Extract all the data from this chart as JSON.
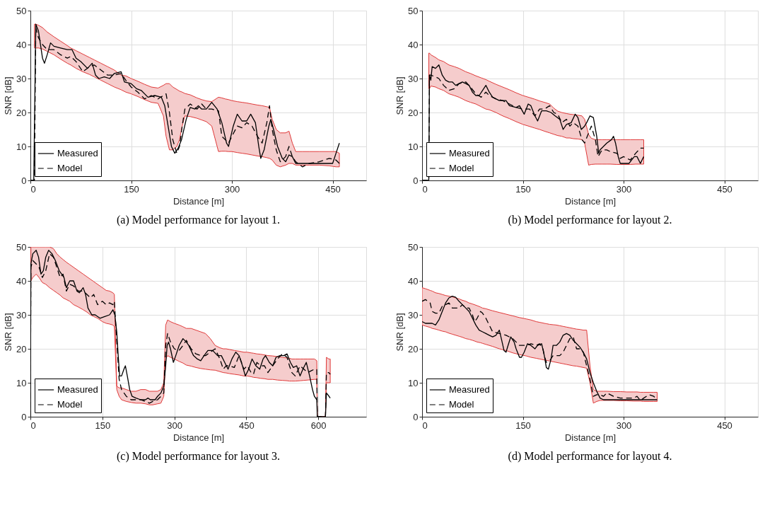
{
  "chart_data": [
    {
      "type": "line",
      "title": "(a) Model performance for layout 1.",
      "xlabel": "Distance [m]",
      "ylabel": "SNR [dB]",
      "xlim": [
        0,
        500
      ],
      "ylim": [
        0,
        50
      ],
      "xticks": [
        0,
        150,
        300,
        450
      ],
      "yticks": [
        0,
        10,
        20,
        30,
        40,
        50
      ],
      "grid": true,
      "legend": "bottom left",
      "series": [
        {
          "name": "Measured",
          "color": "#000000",
          "line_style": "solid",
          "x": [
            0,
            5,
            8,
            12,
            18,
            21,
            25,
            30,
            35,
            45,
            55,
            62,
            68,
            75,
            85,
            92,
            97,
            102,
            110,
            118,
            125,
            135,
            140,
            150,
            158,
            165,
            175,
            185,
            195,
            200,
            205,
            210,
            215,
            220,
            225,
            232,
            238,
            245,
            250,
            255,
            262,
            270,
            278,
            285,
            292,
            295,
            302,
            308,
            315,
            322,
            328,
            335,
            340,
            343,
            348,
            355,
            358,
            362,
            368,
            375,
            380,
            385,
            390,
            395,
            400,
            410,
            420,
            430,
            450,
            455,
            460
          ],
          "values": [
            0,
            0,
            46,
            44,
            36,
            34.5,
            37,
            40.5,
            39.5,
            39,
            38.5,
            38.5,
            36,
            35,
            33,
            34.5,
            31,
            30,
            30.5,
            30,
            31.5,
            32,
            29,
            28.5,
            27,
            26.5,
            24.5,
            25,
            24.5,
            22,
            16,
            10,
            8,
            9.5,
            12,
            18,
            21.5,
            21,
            22,
            21,
            21,
            23,
            21,
            17,
            11,
            10,
            16,
            19.5,
            17.5,
            17.5,
            19.5,
            17,
            10,
            6.5,
            9,
            16,
            18,
            15,
            10,
            6.5,
            5.5,
            7.5,
            7,
            5,
            5,
            5,
            5,
            5,
            5,
            8,
            11
          ]
        },
        {
          "name": "Model",
          "color": "#000000",
          "line_style": "dashed",
          "x": [
            0,
            6,
            8,
            12,
            18,
            25,
            35,
            45,
            55,
            60,
            68,
            78,
            88,
            95,
            105,
            115,
            125,
            135,
            142,
            150,
            160,
            170,
            180,
            190,
            198,
            202,
            207,
            212,
            218,
            222,
            226,
            230,
            238,
            248,
            255,
            262,
            270,
            280,
            285,
            290,
            295,
            300,
            308,
            315,
            322,
            330,
            338,
            345,
            352,
            356,
            360,
            366,
            372,
            380,
            385,
            390,
            395,
            405,
            415,
            430,
            445,
            455,
            460
          ],
          "values": [
            0,
            0,
            45,
            42,
            40,
            38.5,
            38.5,
            37,
            36,
            36.5,
            35,
            32,
            33.5,
            34,
            32.5,
            31,
            31,
            31.5,
            29.5,
            27.5,
            26,
            24,
            25,
            24,
            25,
            25.5,
            20,
            12,
            8,
            10,
            16,
            21,
            22.5,
            21,
            22.5,
            21,
            21,
            20.5,
            13,
            12,
            11,
            13,
            16,
            15.5,
            17,
            16,
            13,
            11,
            17,
            22,
            15,
            9,
            5.5,
            7,
            10,
            7,
            5.5,
            4,
            5,
            5.5,
            6.5,
            6,
            5
          ],
          "upper": [
            null,
            46,
            46,
            45.7,
            45,
            43.7,
            42.3,
            41,
            39.7,
            39,
            38.2,
            37.2,
            36.2,
            35.5,
            34.5,
            33.5,
            32.5,
            31,
            30.8,
            30,
            29.2,
            28.3,
            27.5,
            27.2,
            28,
            28.5,
            28.5,
            27.5,
            26.8,
            26.3,
            26,
            25.6,
            25.2,
            24.3,
            23.8,
            23.4,
            23.2,
            24.5,
            24.3,
            24,
            23.8,
            23.5,
            23.2,
            23,
            22.8,
            22.5,
            22.2,
            22,
            21.7,
            21.5,
            18,
            15,
            14,
            14,
            14.5,
            11,
            8.5,
            8.5,
            8.5,
            8.5,
            8.5,
            8.5,
            8
          ],
          "lower": [
            null,
            39,
            39,
            39,
            38.7,
            38,
            37,
            35.7,
            34.5,
            34,
            33,
            32,
            31.2,
            30.5,
            29.5,
            28.5,
            27.5,
            26.7,
            26,
            25.5,
            24.7,
            23.8,
            23,
            22.7,
            19,
            13,
            9,
            9,
            10,
            12,
            16,
            19,
            18.8,
            18.3,
            17.8,
            17.3,
            16,
            8.5,
            8.6,
            8.6,
            8.5,
            8.5,
            8.2,
            8,
            7.8,
            7.5,
            7.2,
            7,
            6.7,
            6.5,
            6,
            4.5,
            4,
            4.5,
            5,
            5,
            4.5,
            4.5,
            4.5,
            4.5,
            4.3,
            4,
            4
          ]
        }
      ]
    },
    {
      "type": "line",
      "title": "(b) Model performance for layout 2.",
      "xlabel": "Distance [m]",
      "ylabel": "SNR [dB]",
      "xlim": [
        0,
        500
      ],
      "ylim": [
        0,
        50
      ],
      "xticks": [
        0,
        150,
        300,
        450
      ],
      "yticks": [
        0,
        10,
        20,
        30,
        40,
        50
      ],
      "grid": true,
      "legend": "bottom left",
      "series": [
        {
          "name": "Measured",
          "color": "#000000",
          "line_style": "solid",
          "x": [
            0,
            10,
            11,
            13,
            15,
            20,
            25,
            30,
            35,
            40,
            45,
            50,
            55,
            60,
            65,
            70,
            75,
            80,
            85,
            90,
            95,
            100,
            105,
            115,
            125,
            130,
            140,
            145,
            152,
            158,
            162,
            168,
            172,
            178,
            185,
            192,
            198,
            205,
            210,
            215,
            222,
            228,
            232,
            237,
            242,
            245,
            250,
            255,
            260,
            263,
            265,
            270,
            275,
            282,
            285,
            288,
            292,
            295,
            300,
            308,
            312,
            316,
            320,
            325,
            330
          ],
          "values": [
            0,
            0,
            31,
            29.5,
            33.5,
            33,
            34,
            31,
            29.5,
            29,
            29,
            28,
            28.5,
            29,
            28.5,
            28,
            26,
            25,
            25,
            26.5,
            28,
            26,
            24.5,
            23.5,
            23.5,
            22,
            21.5,
            22,
            19.5,
            22.5,
            22,
            19,
            17.5,
            20.5,
            20.5,
            20,
            19,
            18,
            15,
            16.5,
            17,
            19.5,
            18.5,
            15,
            16,
            17,
            19,
            18.5,
            13,
            8,
            9,
            10,
            11,
            12,
            13,
            11,
            7,
            5,
            5,
            5,
            6,
            7,
            7,
            5,
            7
          ]
        },
        {
          "name": "Model",
          "color": "#000000",
          "line_style": "dashed",
          "x": [
            0,
            10,
            11,
            13,
            20,
            25,
            32,
            40,
            48,
            55,
            65,
            72,
            80,
            88,
            95,
            100,
            110,
            120,
            130,
            140,
            150,
            160,
            168,
            175,
            182,
            190,
            196,
            202,
            208,
            215,
            220,
            225,
            232,
            238,
            242,
            248,
            252,
            258,
            262,
            268,
            275,
            280,
            290,
            295,
            300,
            310,
            318,
            325,
            330
          ],
          "values": [
            0,
            0,
            31,
            31,
            30.5,
            30,
            28,
            26.5,
            27,
            28.5,
            29,
            27.5,
            25.5,
            24.5,
            26,
            25,
            24,
            23.5,
            22.5,
            21.5,
            21,
            21,
            19,
            21,
            21,
            22,
            20,
            19.5,
            17,
            18,
            16,
            17,
            16,
            12,
            11,
            14,
            16,
            12,
            7,
            9,
            9,
            8.5,
            8,
            6.5,
            7,
            6,
            8,
            9.5,
            9.5
          ],
          "upper": [
            null,
            37.5,
            37.5,
            37,
            36.2,
            35.5,
            35,
            34,
            33.5,
            33,
            32,
            31.5,
            30.8,
            30.2,
            29.7,
            29.2,
            28.3,
            27.5,
            26.7,
            25.8,
            25,
            24.4,
            23.9,
            23.4,
            23,
            22.5,
            21.3,
            20.4,
            20,
            19.7,
            19.5,
            19.4,
            19.2,
            19,
            18,
            13.5,
            12.4,
            12,
            12,
            12,
            12,
            12,
            12,
            12,
            12,
            12,
            12,
            12,
            12
          ],
          "lower": [
            null,
            27,
            27,
            27.8,
            27.5,
            27,
            26.5,
            25.5,
            25,
            24.5,
            23.5,
            23,
            22.5,
            21.7,
            21,
            20.8,
            20,
            19,
            18.2,
            17.3,
            16.5,
            15.9,
            15.4,
            15,
            14.5,
            14,
            13.6,
            13.2,
            13,
            12.5,
            12.5,
            12.3,
            12.2,
            12,
            11,
            4.5,
            4.7,
            4.8,
            4.8,
            4.8,
            4.8,
            4.8,
            4.7,
            4.7,
            4.7,
            4.7,
            4.8,
            4.8,
            4.8
          ]
        }
      ]
    },
    {
      "type": "line",
      "title": "(c) Model performance for layout 3.",
      "xlabel": "Distance [m]",
      "ylabel": "SNR [dB]",
      "xlim": [
        0,
        700
      ],
      "ylim": [
        0,
        50
      ],
      "xticks": [
        0,
        150,
        300,
        450,
        600
      ],
      "yticks": [
        0,
        10,
        20,
        30,
        40,
        50
      ],
      "grid": true,
      "legend": "bottom left",
      "series": [
        {
          "name": "Measured",
          "color": "#000000",
          "line_style": "solid",
          "x": [
            0,
            1,
            5,
            12,
            17,
            22,
            27,
            32,
            38,
            45,
            52,
            60,
            65,
            70,
            75,
            82,
            90,
            97,
            102,
            110,
            115,
            120,
            128,
            135,
            145,
            155,
            165,
            172,
            176,
            180,
            183,
            186,
            190,
            195,
            198,
            202,
            207,
            212,
            220,
            230,
            240,
            245,
            250,
            260,
            265,
            272,
            278,
            282,
            285,
            288,
            292,
            298,
            303,
            310,
            318,
            325,
            330,
            340,
            348,
            355,
            362,
            370,
            380,
            390,
            398,
            405,
            412,
            420,
            428,
            435,
            442,
            448,
            455,
            462,
            470,
            478,
            485,
            490,
            498,
            505,
            512,
            520,
            528,
            535,
            542,
            548,
            555,
            562,
            568,
            575,
            582,
            588,
            592,
            597,
            598,
            615,
            617,
            620,
            625
          ],
          "values": [
            0,
            45,
            48,
            49,
            47,
            42,
            43,
            47,
            49,
            48,
            46,
            43,
            42,
            41,
            38,
            40,
            40,
            37,
            36.5,
            38,
            36,
            32,
            30,
            30,
            29,
            29.5,
            30,
            31.5,
            30,
            25,
            18,
            12,
            12,
            14,
            15,
            12,
            8,
            6,
            5.5,
            5,
            5,
            5.5,
            5,
            5,
            6,
            7,
            9,
            15,
            21,
            22,
            20,
            16,
            18,
            21,
            23,
            22,
            21,
            18,
            17,
            16.5,
            18,
            19.5,
            19.5,
            18,
            18,
            16,
            14,
            17,
            19,
            18,
            15,
            12,
            14,
            17,
            15,
            14,
            17,
            18,
            16,
            15,
            17.5,
            18,
            18,
            18.5,
            16,
            14.5,
            15,
            12,
            14,
            16,
            12,
            8,
            6,
            5,
            0,
            0,
            7,
            6.5,
            5.5
          ]
        },
        {
          "name": "Model",
          "color": "#000000",
          "line_style": "dashed",
          "x": [
            0,
            1,
            5,
            12,
            18,
            25,
            32,
            40,
            48,
            55,
            62,
            68,
            75,
            82,
            90,
            100,
            110,
            118,
            125,
            132,
            140,
            150,
            158,
            165,
            172,
            175,
            180,
            185,
            190,
            200,
            210,
            220,
            230,
            240,
            248,
            255,
            265,
            272,
            278,
            282,
            286,
            292,
            300,
            310,
            318,
            325,
            335,
            345,
            355,
            365,
            375,
            385,
            395,
            402,
            408,
            415,
            425,
            435,
            445,
            452,
            460,
            465,
            472,
            480,
            488,
            495,
            505,
            515,
            525,
            535,
            540,
            545,
            552,
            562,
            570,
            578,
            585,
            592,
            597,
            598,
            615,
            617,
            622,
            625
          ],
          "values": [
            0,
            44,
            46,
            45,
            44,
            41,
            43,
            48,
            47,
            44,
            41,
            42,
            37,
            39,
            38.5,
            37,
            37,
            36,
            35,
            36,
            33,
            34,
            33,
            33.5,
            33,
            34,
            22,
            11,
            8,
            6,
            5,
            5,
            5,
            4.5,
            4,
            4.5,
            5,
            6,
            7,
            21,
            24.5,
            22,
            20,
            19.5,
            21,
            22.5,
            20,
            18.5,
            18,
            18,
            19,
            20,
            17,
            14,
            15,
            15,
            14.5,
            18,
            14,
            15,
            13,
            12.5,
            16,
            15,
            15,
            13,
            15,
            17,
            18.5,
            17.5,
            15,
            13,
            12,
            15,
            14,
            13,
            13.5,
            14,
            14,
            0,
            0,
            13,
            13,
            12.5
          ],
          "upper": [
            null,
            50,
            50,
            50,
            50,
            50,
            50,
            50,
            49.5,
            48,
            47,
            46.3,
            45.5,
            44.8,
            44,
            43,
            42,
            41.2,
            40.5,
            39.8,
            39,
            38,
            37.2,
            37,
            36.5,
            36,
            9,
            8.5,
            8.5,
            8,
            7.5,
            7.5,
            8,
            8,
            7.5,
            7.5,
            7.5,
            8,
            10,
            27,
            28.5,
            28,
            27.5,
            27,
            26.5,
            26,
            26,
            25.5,
            25,
            24.5,
            23,
            21,
            20.3,
            20,
            20,
            19.8,
            19.5,
            19.3,
            19,
            19,
            18.8,
            18.7,
            18.5,
            18.4,
            18.2,
            18,
            17.9,
            17.7,
            17.5,
            17.3,
            17.2,
            17,
            17,
            17,
            17,
            17,
            17,
            17,
            16.5,
            0,
            0,
            17.5,
            17,
            17
          ],
          "lower": [
            null,
            40,
            41,
            42,
            41,
            39.5,
            39,
            38,
            37.2,
            36.5,
            35.8,
            35,
            34.5,
            34,
            33,
            32.3,
            31.5,
            30.8,
            30,
            29.5,
            29,
            28,
            27.5,
            27.3,
            27,
            26.5,
            8,
            6,
            5,
            4.5,
            4.2,
            4,
            4,
            3.8,
            3.5,
            3.5,
            3.8,
            4,
            6,
            17,
            18,
            17.5,
            17,
            16.3,
            15.8,
            15.2,
            14.9,
            14.5,
            14.2,
            14,
            13.8,
            13.7,
            13.3,
            13,
            12.9,
            12.7,
            12.5,
            12.3,
            12,
            12,
            11.8,
            11.6,
            11.5,
            11.3,
            11.2,
            11,
            11,
            10.8,
            10.7,
            10.6,
            10.5,
            10.5,
            10.5,
            10.6,
            10.7,
            10.8,
            10.9,
            11,
            11,
            0,
            0,
            10,
            10,
            10
          ]
        }
      ]
    },
    {
      "type": "line",
      "title": "(d) Model performance for layout 4.",
      "xlabel": "Distance [m]",
      "ylabel": "SNR [dB]",
      "xlim": [
        0,
        500
      ],
      "ylim": [
        0,
        50
      ],
      "xticks": [
        0,
        150,
        300,
        450
      ],
      "yticks": [
        0,
        10,
        20,
        30,
        40,
        50
      ],
      "grid": true,
      "legend": "bottom left",
      "series": [
        {
          "name": "Measured",
          "color": "#000000",
          "line_style": "solid",
          "x": [
            0,
            5,
            10,
            15,
            20,
            25,
            30,
            35,
            40,
            45,
            50,
            55,
            60,
            65,
            70,
            75,
            80,
            85,
            90,
            95,
            100,
            105,
            110,
            115,
            118,
            122,
            125,
            128,
            132,
            137,
            140,
            145,
            148,
            152,
            157,
            162,
            168,
            172,
            178,
            182,
            185,
            188,
            192,
            195,
            200,
            205,
            210,
            215,
            220,
            225,
            230,
            235,
            240,
            245,
            250,
            255,
            260,
            265,
            270,
            300,
            330,
            350
          ],
          "values": [
            28,
            27.5,
            27.5,
            27.5,
            27,
            28.5,
            31,
            33.5,
            35,
            35.5,
            35.2,
            34,
            33,
            32,
            31,
            29,
            27,
            25.5,
            25,
            24.5,
            24,
            23.5,
            24,
            25.5,
            23,
            19.5,
            19,
            21,
            23.5,
            22,
            20,
            17.5,
            17.5,
            19,
            21.5,
            21,
            20,
            21,
            21.5,
            18,
            14.5,
            14,
            17,
            21,
            21,
            22,
            24,
            24.5,
            24,
            22.5,
            21.5,
            20.5,
            19,
            17,
            13,
            10,
            7.5,
            5.5,
            5,
            5,
            5,
            5
          ]
        },
        {
          "name": "Model",
          "color": "#000000",
          "line_style": "dashed",
          "x": [
            0,
            5,
            12,
            15,
            20,
            25,
            30,
            35,
            40,
            45,
            55,
            60,
            65,
            70,
            75,
            78,
            82,
            87,
            90,
            95,
            100,
            105,
            115,
            125,
            135,
            145,
            155,
            162,
            170,
            175,
            180,
            182,
            185,
            190,
            195,
            200,
            205,
            210,
            215,
            220,
            225,
            230,
            235,
            240,
            245,
            250,
            255,
            260,
            265,
            270,
            275,
            285,
            295,
            305,
            315,
            320,
            325,
            330,
            338,
            345,
            350
          ],
          "values": [
            34,
            34.5,
            33.5,
            31,
            30.5,
            30.5,
            32.5,
            33,
            33.5,
            32,
            32,
            33,
            32,
            32,
            30,
            28,
            29,
            31,
            30.5,
            29,
            27,
            25,
            24.5,
            24,
            23,
            21,
            21,
            21.5,
            21,
            21.5,
            20,
            18,
            16,
            16.5,
            18,
            18,
            18,
            19,
            21,
            23,
            23.5,
            20,
            20,
            19,
            15,
            11,
            6,
            6.5,
            6.5,
            6,
            7,
            6,
            5.5,
            5.5,
            5.5,
            6,
            4.8,
            5.5,
            6.5,
            6,
            5
          ],
          "upper": [
            38,
            37.7,
            37.2,
            37,
            36.5,
            36.3,
            36,
            35.7,
            35.5,
            35.3,
            34.7,
            34.3,
            34,
            33.5,
            33.2,
            33,
            32.7,
            32.3,
            32,
            31.8,
            31.5,
            31.2,
            30.7,
            30.2,
            29.7,
            29.2,
            28.8,
            28.5,
            28,
            27.8,
            27.6,
            27.5,
            27.4,
            27.2,
            27.1,
            27,
            26.8,
            26.6,
            26.4,
            26.2,
            26,
            25.8,
            25.7,
            25.5,
            25.5,
            15,
            8,
            7.5,
            7.5,
            7.5,
            7.5,
            7.4,
            7.4,
            7.3,
            7.3,
            7.3,
            7.2,
            7.2,
            7.2,
            7.2,
            7.2
          ],
          "lower": [
            27,
            26.7,
            26.3,
            26,
            25.8,
            25.5,
            25.2,
            25,
            24.6,
            24.3,
            23.7,
            23.4,
            23,
            22.8,
            22.5,
            22.3,
            22,
            21.8,
            21.6,
            21.3,
            21,
            20.7,
            20,
            19.5,
            18.8,
            18.3,
            17.9,
            17.5,
            17.2,
            17,
            16.8,
            16.7,
            16.6,
            16.4,
            16.2,
            16,
            15.8,
            15.6,
            15.4,
            15.2,
            15,
            14.9,
            14.7,
            14.5,
            14.3,
            10,
            4,
            4.5,
            4.8,
            4.8,
            4.8,
            4.8,
            4.7,
            4.7,
            4.6,
            4.6,
            4.6,
            4.5,
            4.5,
            4.5,
            4.5
          ]
        }
      ]
    }
  ]
}
